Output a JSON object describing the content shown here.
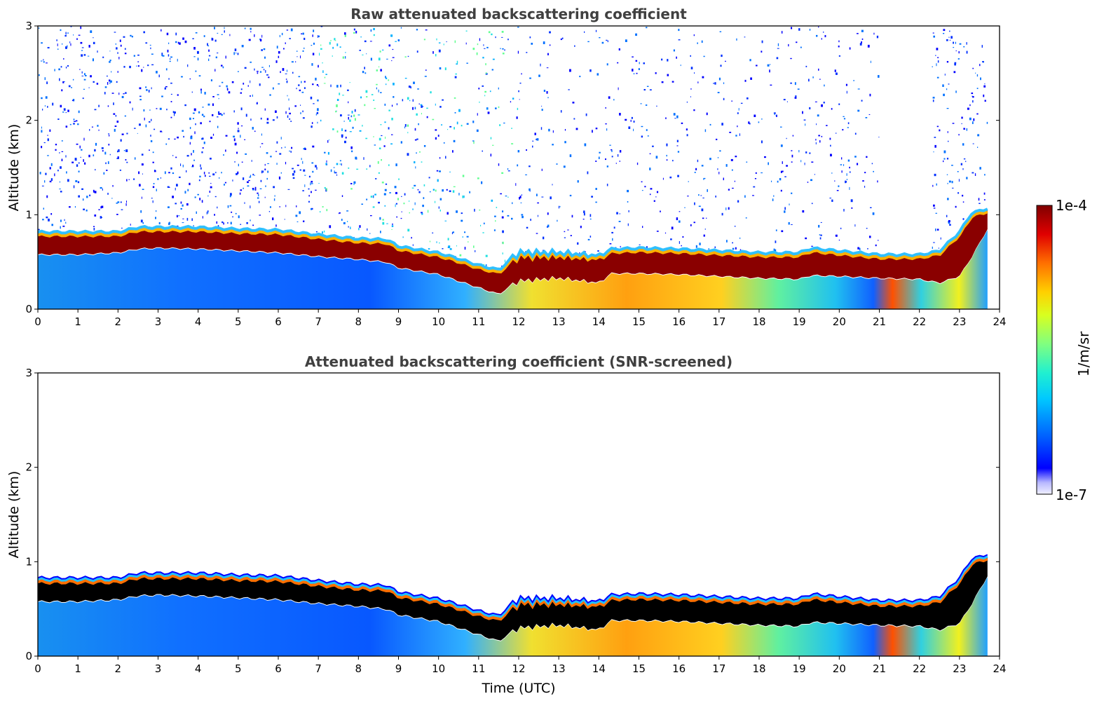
{
  "chart_data": {
    "type": "heatmap",
    "colorbar": {
      "min_label": "1e-7",
      "max_label": "1e-4",
      "label": "1/m/sr",
      "scale": "log",
      "min": 1e-07,
      "max": 0.0001,
      "colormap": "jet"
    },
    "xlabel": "Time (UTC)",
    "panels": [
      {
        "title": "Raw attenuated backscattering coefficient",
        "ylabel": "Altitude (km)",
        "xlim": [
          0,
          24
        ],
        "ylim": [
          0,
          3
        ],
        "xticks": [
          "0",
          "1",
          "2",
          "3",
          "4",
          "5",
          "6",
          "7",
          "8",
          "9",
          "10",
          "11",
          "12",
          "13",
          "14",
          "15",
          "16",
          "17",
          "18",
          "19",
          "20",
          "21",
          "22",
          "23",
          "24"
        ],
        "yticks": [
          "0",
          "1",
          "2",
          "3"
        ],
        "screened": false
      },
      {
        "title": "Attenuated backscattering coefficient (SNR-screened)",
        "ylabel": "Altitude (km)",
        "xlim": [
          0,
          24
        ],
        "ylim": [
          0,
          3
        ],
        "xticks": [
          "0",
          "1",
          "2",
          "3",
          "4",
          "5",
          "6",
          "7",
          "8",
          "9",
          "10",
          "11",
          "12",
          "13",
          "14",
          "15",
          "16",
          "17",
          "18",
          "19",
          "20",
          "21",
          "22",
          "23",
          "24"
        ],
        "yticks": [
          "0",
          "1",
          "2",
          "3"
        ],
        "screened": true
      }
    ],
    "layer_top_km": [
      [
        0,
        0.8
      ],
      [
        1,
        0.8
      ],
      [
        2,
        0.8
      ],
      [
        2.5,
        0.85
      ],
      [
        3,
        0.85
      ],
      [
        4,
        0.85
      ],
      [
        5,
        0.83
      ],
      [
        6,
        0.82
      ],
      [
        7,
        0.77
      ],
      [
        8,
        0.73
      ],
      [
        8.7,
        0.72
      ],
      [
        9,
        0.65
      ],
      [
        10,
        0.58
      ],
      [
        10.5,
        0.52
      ],
      [
        11,
        0.45
      ],
      [
        11.5,
        0.4
      ],
      [
        12,
        0.58
      ],
      [
        13,
        0.58
      ],
      [
        14,
        0.55
      ],
      [
        14.3,
        0.62
      ],
      [
        15,
        0.63
      ],
      [
        16,
        0.62
      ],
      [
        17,
        0.6
      ],
      [
        18,
        0.58
      ],
      [
        19,
        0.58
      ],
      [
        19.3,
        0.63
      ],
      [
        20,
        0.6
      ],
      [
        21,
        0.56
      ],
      [
        22,
        0.56
      ],
      [
        22.5,
        0.6
      ],
      [
        23,
        0.8
      ],
      [
        23.3,
        1.0
      ],
      [
        23.7,
        1.05
      ]
    ],
    "layer_base_km": [
      [
        0,
        0.58
      ],
      [
        1,
        0.58
      ],
      [
        2,
        0.6
      ],
      [
        2.5,
        0.64
      ],
      [
        3,
        0.65
      ],
      [
        4,
        0.64
      ],
      [
        5,
        0.62
      ],
      [
        6,
        0.6
      ],
      [
        7,
        0.56
      ],
      [
        8,
        0.53
      ],
      [
        8.7,
        0.5
      ],
      [
        9,
        0.44
      ],
      [
        10,
        0.37
      ],
      [
        10.5,
        0.3
      ],
      [
        11,
        0.23
      ],
      [
        11.5,
        0.16
      ],
      [
        12,
        0.3
      ],
      [
        13,
        0.33
      ],
      [
        14,
        0.28
      ],
      [
        14.3,
        0.38
      ],
      [
        15,
        0.38
      ],
      [
        16,
        0.37
      ],
      [
        17,
        0.35
      ],
      [
        18,
        0.33
      ],
      [
        19,
        0.32
      ],
      [
        19.3,
        0.36
      ],
      [
        20,
        0.35
      ],
      [
        21,
        0.33
      ],
      [
        22,
        0.32
      ],
      [
        22.5,
        0.28
      ],
      [
        23,
        0.35
      ],
      [
        23.3,
        0.55
      ],
      [
        23.7,
        0.85
      ]
    ]
  }
}
